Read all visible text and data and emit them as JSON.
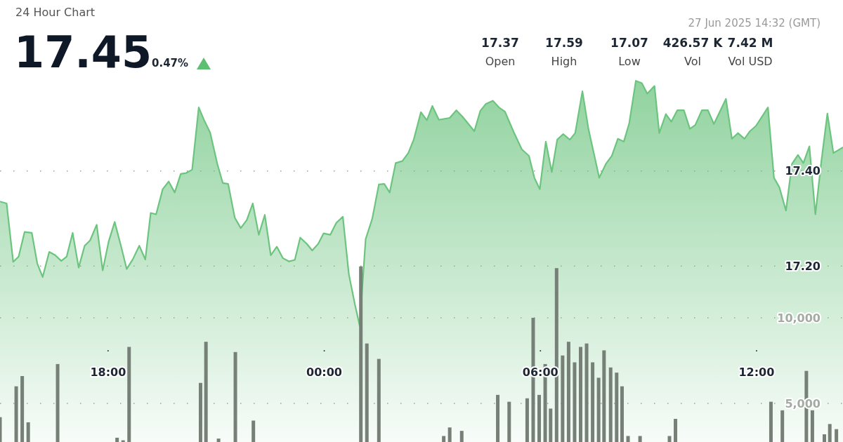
{
  "chart_data": {
    "type": "area",
    "subtitle": "24 Hour Chart",
    "annotations": [
      "17.45",
      "0.47%",
      "27 Jun 2025 14:32 (GMT)",
      "17.37",
      "Open",
      "17.59",
      "High",
      "17.07",
      "Low",
      "426.57 K",
      "Vol",
      "7.42 M",
      "Vol USD"
    ],
    "xlim": [
      "2025-06-26T15:00",
      "2025-06-27T14:24"
    ],
    "xticks": [
      {
        "value": "2025-06-26T18:00",
        "label": "18:00"
      },
      {
        "value": "2025-06-27T00:00",
        "label": "00:00"
      },
      {
        "value": "2025-06-27T06:00",
        "label": "06:00"
      },
      {
        "value": "2025-06-27T12:00",
        "label": "12:00"
      }
    ],
    "ylim": [
      16.83,
      17.76
    ],
    "yticks": [
      {
        "value": 17.2,
        "label": "17.20"
      },
      {
        "value": 17.4,
        "label": "17.40"
      }
    ],
    "y2lim": [
      2750,
      28550
    ],
    "y2ticks": [
      {
        "value": 5000,
        "label": "5,000"
      },
      {
        "value": 10000,
        "label": "10,000"
      }
    ],
    "grid": "y",
    "series": [
      {
        "color": "#6cc47f",
        "x": [
          "2025-06-26T15:00",
          "2025-06-26T15:11",
          "2025-06-26T15:22",
          "2025-06-26T15:31",
          "2025-06-26T15:41",
          "2025-06-26T15:53",
          "2025-06-26T16:02",
          "2025-06-26T16:11",
          "2025-06-26T16:22",
          "2025-06-26T16:32",
          "2025-06-26T16:42",
          "2025-06-26T16:51",
          "2025-06-26T17:01",
          "2025-06-26T17:11",
          "2025-06-26T17:21",
          "2025-06-26T17:30",
          "2025-06-26T17:41",
          "2025-06-26T17:51",
          "2025-06-26T18:01",
          "2025-06-26T18:11",
          "2025-06-26T18:22",
          "2025-06-26T18:31",
          "2025-06-26T18:41",
          "2025-06-26T18:52",
          "2025-06-26T19:02",
          "2025-06-26T19:11",
          "2025-06-26T19:20",
          "2025-06-26T19:31",
          "2025-06-26T19:41",
          "2025-06-26T19:51",
          "2025-06-26T20:01",
          "2025-06-26T20:10",
          "2025-06-26T20:20",
          "2025-06-26T20:31",
          "2025-06-26T20:40",
          "2025-06-26T20:50",
          "2025-06-26T21:02",
          "2025-06-26T21:11",
          "2025-06-26T21:20",
          "2025-06-26T21:31",
          "2025-06-26T21:41",
          "2025-06-26T21:51",
          "2025-06-26T22:01",
          "2025-06-26T22:11",
          "2025-06-26T22:21",
          "2025-06-26T22:31",
          "2025-06-26T22:41",
          "2025-06-26T22:51",
          "2025-06-26T23:01",
          "2025-06-26T23:11",
          "2025-06-26T23:20",
          "2025-06-26T23:31",
          "2025-06-26T23:40",
          "2025-06-26T23:50",
          "2025-06-26T23:59",
          "2025-06-27T00:10",
          "2025-06-27T00:20",
          "2025-06-27T00:31",
          "2025-06-27T00:41",
          "2025-06-27T00:51",
          "2025-06-27T00:59",
          "2025-06-27T01:09",
          "2025-06-27T01:20",
          "2025-06-27T01:31",
          "2025-06-27T01:40",
          "2025-06-27T01:49",
          "2025-06-27T01:59",
          "2025-06-27T02:10",
          "2025-06-27T02:20",
          "2025-06-27T02:29",
          "2025-06-27T02:41",
          "2025-06-27T02:51",
          "2025-06-27T03:00",
          "2025-06-27T03:11",
          "2025-06-27T03:29",
          "2025-06-27T03:40",
          "2025-06-27T03:50",
          "2025-06-27T04:01",
          "2025-06-27T04:10",
          "2025-06-27T04:20",
          "2025-06-27T04:29",
          "2025-06-27T04:41",
          "2025-06-27T04:51",
          "2025-06-27T05:01",
          "2025-06-27T05:16",
          "2025-06-27T05:29",
          "2025-06-27T05:41",
          "2025-06-27T05:50",
          "2025-06-27T05:59",
          "2025-06-27T06:09",
          "2025-06-27T06:19",
          "2025-06-27T06:28",
          "2025-06-27T06:38",
          "2025-06-27T06:49",
          "2025-06-27T06:58",
          "2025-06-27T07:10",
          "2025-06-27T07:20",
          "2025-06-27T07:38",
          "2025-06-27T07:49",
          "2025-06-27T07:59",
          "2025-06-27T08:09",
          "2025-06-27T08:19",
          "2025-06-27T08:28",
          "2025-06-27T08:39",
          "2025-06-27T08:49",
          "2025-06-27T08:58",
          "2025-06-27T09:10",
          "2025-06-27T09:18",
          "2025-06-27T09:29",
          "2025-06-27T09:38",
          "2025-06-27T09:48",
          "2025-06-27T09:59",
          "2025-06-27T10:09",
          "2025-06-27T10:18",
          "2025-06-27T10:29",
          "2025-06-27T10:39",
          "2025-06-27T10:49",
          "2025-06-27T11:09",
          "2025-06-27T11:19",
          "2025-06-27T11:29",
          "2025-06-27T11:40",
          "2025-06-27T11:49",
          "2025-06-27T11:59",
          "2025-06-27T12:19",
          "2025-06-27T12:29",
          "2025-06-27T12:38",
          "2025-06-27T12:49",
          "2025-06-27T12:59",
          "2025-06-27T13:09",
          "2025-06-27T13:18",
          "2025-06-27T13:28",
          "2025-06-27T13:38",
          "2025-06-27T13:48",
          "2025-06-27T13:58",
          "2025-06-27T14:08",
          "2025-06-27T14:24"
        ],
        "values": [
          17.336,
          17.332,
          17.209,
          17.22,
          17.272,
          17.27,
          17.206,
          17.177,
          17.23,
          17.223,
          17.211,
          17.22,
          17.27,
          17.197,
          17.243,
          17.254,
          17.287,
          17.191,
          17.252,
          17.293,
          17.24,
          17.194,
          17.214,
          17.243,
          17.214,
          17.312,
          17.309,
          17.362,
          17.378,
          17.355,
          17.394,
          17.396,
          17.403,
          17.534,
          17.507,
          17.481,
          17.415,
          17.375,
          17.373,
          17.302,
          17.28,
          17.297,
          17.332,
          17.266,
          17.308,
          17.223,
          17.241,
          17.217,
          17.21,
          17.213,
          17.26,
          17.247,
          17.233,
          17.247,
          17.269,
          17.266,
          17.291,
          17.304,
          17.183,
          17.12,
          17.075,
          17.257,
          17.3,
          17.372,
          17.373,
          17.355,
          17.417,
          17.421,
          17.438,
          17.466,
          17.524,
          17.507,
          17.537,
          17.508,
          17.512,
          17.528,
          17.515,
          17.498,
          17.484,
          17.527,
          17.541,
          17.548,
          17.534,
          17.525,
          17.481,
          17.446,
          17.432,
          17.386,
          17.362,
          17.462,
          17.398,
          17.466,
          17.478,
          17.466,
          17.48,
          17.568,
          17.489,
          17.386,
          17.415,
          17.432,
          17.468,
          17.462,
          17.501,
          17.59,
          17.585,
          17.563,
          17.579,
          17.48,
          17.52,
          17.504,
          17.528,
          17.528,
          17.489,
          17.497,
          17.528,
          17.528,
          17.499,
          17.552,
          17.468,
          17.48,
          17.468,
          17.484,
          17.495,
          17.534,
          17.386,
          17.366,
          17.317,
          17.415,
          17.434,
          17.417,
          17.452,
          17.309,
          17.421,
          17.521,
          17.438,
          17.45
        ]
      },
      {
        "type": "bar",
        "axis": "y2",
        "color": "#768077",
        "x": [
          "2025-06-26T15:00",
          "2025-06-26T15:27",
          "2025-06-26T15:37",
          "2025-06-26T15:47",
          "2025-06-26T16:36",
          "2025-06-26T18:15",
          "2025-06-26T18:25",
          "2025-06-26T18:35",
          "2025-06-26T20:34",
          "2025-06-26T20:43",
          "2025-06-26T21:04",
          "2025-06-26T21:32",
          "2025-06-26T22:02",
          "2025-06-27T01:01",
          "2025-06-27T01:11",
          "2025-06-27T01:31",
          "2025-06-27T03:19",
          "2025-06-27T03:29",
          "2025-06-27T03:49",
          "2025-06-27T04:49",
          "2025-06-27T05:08",
          "2025-06-27T05:38",
          "2025-06-27T05:48",
          "2025-06-27T05:58",
          "2025-06-27T06:08",
          "2025-06-27T06:17",
          "2025-06-27T06:27",
          "2025-06-27T06:37",
          "2025-06-27T06:47",
          "2025-06-27T06:57",
          "2025-06-27T07:07",
          "2025-06-27T07:17",
          "2025-06-27T07:27",
          "2025-06-27T07:37",
          "2025-06-27T07:46",
          "2025-06-27T07:57",
          "2025-06-27T08:07",
          "2025-06-27T08:16",
          "2025-06-27T08:26",
          "2025-06-27T08:46",
          "2025-06-27T09:35",
          "2025-06-27T09:45",
          "2025-06-27T12:24",
          "2025-06-27T12:43",
          "2025-06-27T13:23",
          "2025-06-27T13:33",
          "2025-06-27T13:53",
          "2025-06-27T14:02",
          "2025-06-27T14:13"
        ],
        "values": [
          4200,
          6000,
          6600,
          3900,
          7300,
          3000,
          2850,
          8300,
          6200,
          8600,
          2950,
          8000,
          4000,
          13000,
          8500,
          7600,
          3100,
          3600,
          3400,
          5500,
          5100,
          5300,
          10000,
          5500,
          7300,
          4700,
          12900,
          7800,
          8600,
          7400,
          8300,
          8500,
          7400,
          6500,
          8100,
          7100,
          6800,
          6000,
          3100,
          3100,
          3100,
          4100,
          5100,
          4600,
          6900,
          4600,
          3200,
          3800,
          3500
        ]
      }
    ]
  }
}
